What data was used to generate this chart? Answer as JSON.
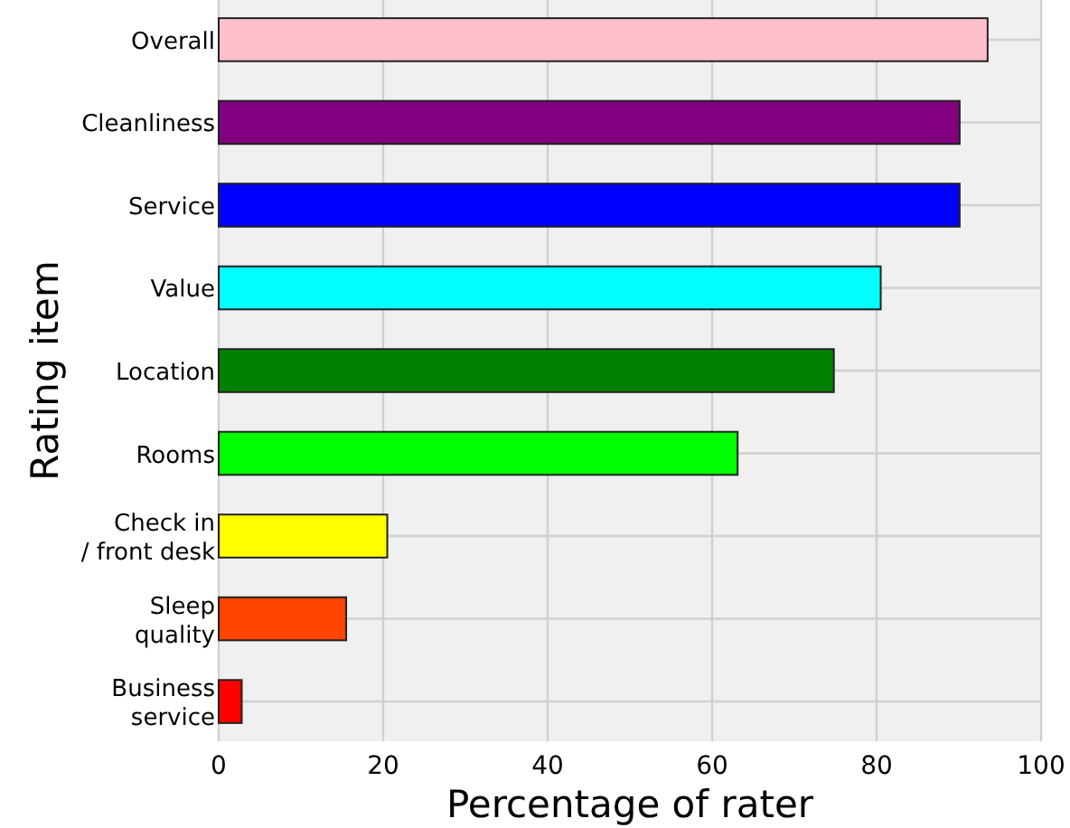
{
  "chart_data": {
    "type": "bar",
    "orientation": "horizontal",
    "xlabel": "Percentage of rater",
    "ylabel": "Rating item",
    "categories": [
      "Overall",
      "Cleanliness",
      "Service",
      "Value",
      "Location",
      "Rooms",
      "Check in\n/ front desk",
      "Sleep\nquality",
      "Business\nservice"
    ],
    "values": [
      93.5,
      90.1,
      90.1,
      80.5,
      74.8,
      63.1,
      20.5,
      15.5,
      2.8
    ],
    "colors": [
      "#ffc0cb",
      "#800080",
      "#0000ff",
      "#00ffff",
      "#008000",
      "#00ff00",
      "#ffff00",
      "#ff4500",
      "#ff0000"
    ],
    "xlim": [
      0,
      100
    ],
    "xticks": [
      0,
      20,
      40,
      60,
      80,
      100
    ],
    "grid": true
  }
}
